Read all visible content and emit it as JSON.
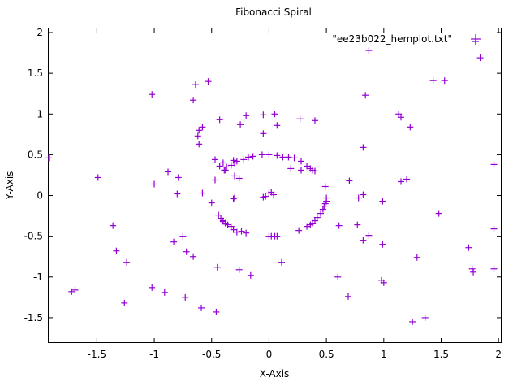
{
  "chart_data": {
    "type": "scatter",
    "title": "Fibonacci Spiral",
    "xlabel": "X-Axis",
    "ylabel": "Y-Axis",
    "xlim": [
      -1.92,
      2.02
    ],
    "ylim": [
      -1.8,
      2.05
    ],
    "xticks": [
      -1.5,
      -1,
      -0.5,
      0,
      0.5,
      1,
      1.5,
      2
    ],
    "xtick_labels": [
      "-1.5",
      "-1",
      "-0.5",
      "0",
      "0.5",
      "1",
      "1.5",
      "2"
    ],
    "yticks": [
      -1.5,
      -1,
      -0.5,
      0,
      0.5,
      1,
      1.5,
      2
    ],
    "ytick_labels": [
      "-1.5",
      "-1",
      "-0.5",
      "0",
      "0.5",
      "1",
      "1.5",
      "2"
    ],
    "grid": false,
    "legend_position": "top-right",
    "series": [
      {
        "name": "\"ee23b022_hemplot.txt\"",
        "marker": "+",
        "color": "#9400d3",
        "points": [
          [
            0.0,
            0.03
          ],
          [
            0.02,
            0.04
          ],
          [
            0.04,
            0.01
          ],
          [
            -0.05,
            -0.02
          ],
          [
            -0.03,
            -0.01
          ],
          [
            0.0,
            0.5
          ],
          [
            -0.06,
            0.5
          ],
          [
            -0.14,
            0.48
          ],
          [
            -0.18,
            0.47
          ],
          [
            -0.22,
            0.44
          ],
          [
            -0.28,
            0.42
          ],
          [
            -0.3,
            0.4
          ],
          [
            -0.33,
            0.37
          ],
          [
            -0.37,
            0.35
          ],
          [
            -0.39,
            0.31
          ],
          [
            0.07,
            0.49
          ],
          [
            0.12,
            0.47
          ],
          [
            0.22,
            0.46
          ],
          [
            0.28,
            0.42
          ],
          [
            0.33,
            0.36
          ],
          [
            0.36,
            0.33
          ],
          [
            0.38,
            0.31
          ],
          [
            0.4,
            0.3
          ],
          [
            0.49,
            0.11
          ],
          [
            0.5,
            -0.03
          ],
          [
            0.5,
            -0.07
          ],
          [
            0.49,
            -0.1
          ],
          [
            0.48,
            -0.13
          ],
          [
            0.47,
            -0.17
          ],
          [
            0.45,
            -0.22
          ],
          [
            0.42,
            -0.27
          ],
          [
            0.4,
            -0.31
          ],
          [
            0.38,
            -0.34
          ],
          [
            0.36,
            -0.36
          ],
          [
            0.33,
            -0.38
          ],
          [
            0.26,
            -0.43
          ],
          [
            -0.44,
            -0.24
          ],
          [
            -0.42,
            -0.28
          ],
          [
            -0.4,
            -0.31
          ],
          [
            -0.38,
            -0.34
          ],
          [
            -0.36,
            -0.36
          ],
          [
            -0.33,
            -0.38
          ],
          [
            -0.31,
            -0.42
          ],
          [
            -0.28,
            -0.45
          ],
          [
            -0.24,
            -0.44
          ],
          [
            -0.2,
            -0.46
          ],
          [
            0.0,
            -0.5
          ],
          [
            0.02,
            -0.5
          ],
          [
            0.05,
            -0.5
          ],
          [
            0.07,
            -0.5
          ],
          [
            0.17,
            0.47
          ],
          [
            0.19,
            0.33
          ],
          [
            0.28,
            0.31
          ],
          [
            -0.26,
            0.21
          ],
          [
            -0.31,
            -0.04
          ],
          [
            -0.4,
            -0.32
          ],
          [
            -0.31,
            0.43
          ],
          [
            -0.47,
            0.19
          ],
          [
            -0.43,
            0.36
          ],
          [
            0.05,
            1.0
          ],
          [
            0.07,
            0.86
          ],
          [
            -0.05,
            0.99
          ],
          [
            -0.2,
            0.98
          ],
          [
            -0.25,
            0.87
          ],
          [
            -0.05,
            0.76
          ],
          [
            0.27,
            0.94
          ],
          [
            0.4,
            0.92
          ],
          [
            -0.43,
            0.93
          ],
          [
            -0.58,
            0.84
          ],
          [
            -0.61,
            0.8
          ],
          [
            -0.62,
            0.73
          ],
          [
            -0.61,
            0.63
          ],
          [
            -0.47,
            0.44
          ],
          [
            -0.4,
            0.4
          ],
          [
            -0.38,
            0.31
          ],
          [
            -0.3,
            0.24
          ],
          [
            -0.58,
            0.03
          ],
          [
            -0.5,
            -0.09
          ],
          [
            -0.3,
            -0.03
          ],
          [
            -0.75,
            -0.5
          ],
          [
            -0.72,
            -0.69
          ],
          [
            -0.66,
            -0.75
          ],
          [
            -0.83,
            -0.57
          ],
          [
            -1.0,
            0.14
          ],
          [
            -0.88,
            0.29
          ],
          [
            -0.79,
            0.22
          ],
          [
            -0.8,
            0.02
          ],
          [
            -1.49,
            0.22
          ],
          [
            -1.36,
            -0.37
          ],
          [
            -1.33,
            -0.68
          ],
          [
            -1.24,
            -0.82
          ],
          [
            -1.72,
            -1.18
          ],
          [
            -1.69,
            -1.16
          ],
          [
            -1.26,
            -1.32
          ],
          [
            -1.02,
            -1.13
          ],
          [
            -0.91,
            -1.19
          ],
          [
            -0.73,
            -1.25
          ],
          [
            -0.59,
            -1.38
          ],
          [
            -0.46,
            -1.43
          ],
          [
            -0.45,
            -0.88
          ],
          [
            -0.26,
            -0.91
          ],
          [
            -0.16,
            -0.98
          ],
          [
            0.11,
            -0.82
          ],
          [
            -0.66,
            1.17
          ],
          [
            -0.64,
            1.36
          ],
          [
            -0.53,
            1.4
          ],
          [
            -1.02,
            1.24
          ],
          [
            -1.92,
            0.46
          ],
          [
            0.87,
            1.78
          ],
          [
            0.84,
            1.23
          ],
          [
            0.82,
            0.59
          ],
          [
            0.7,
            0.18
          ],
          [
            0.78,
            -0.03
          ],
          [
            0.82,
            0.01
          ],
          [
            0.99,
            -0.07
          ],
          [
            0.77,
            -0.36
          ],
          [
            0.82,
            -0.55
          ],
          [
            0.87,
            -0.49
          ],
          [
            0.99,
            -0.6
          ],
          [
            0.61,
            -0.37
          ],
          [
            0.6,
            -1.0
          ],
          [
            0.69,
            -1.24
          ],
          [
            0.98,
            -1.04
          ],
          [
            1.0,
            -1.07
          ],
          [
            1.13,
            1.0
          ],
          [
            1.15,
            0.96
          ],
          [
            1.23,
            0.84
          ],
          [
            1.43,
            1.41
          ],
          [
            1.53,
            1.41
          ],
          [
            1.15,
            0.17
          ],
          [
            1.2,
            0.2
          ],
          [
            1.48,
            -0.22
          ],
          [
            1.29,
            -0.76
          ],
          [
            1.25,
            -1.55
          ],
          [
            1.36,
            -1.5
          ],
          [
            1.74,
            -0.64
          ],
          [
            1.77,
            -0.9
          ],
          [
            1.78,
            -0.94
          ],
          [
            1.96,
            -0.9
          ],
          [
            1.96,
            -0.41
          ],
          [
            1.96,
            0.38
          ],
          [
            1.8,
            1.89
          ],
          [
            1.84,
            1.69
          ]
        ]
      }
    ]
  }
}
